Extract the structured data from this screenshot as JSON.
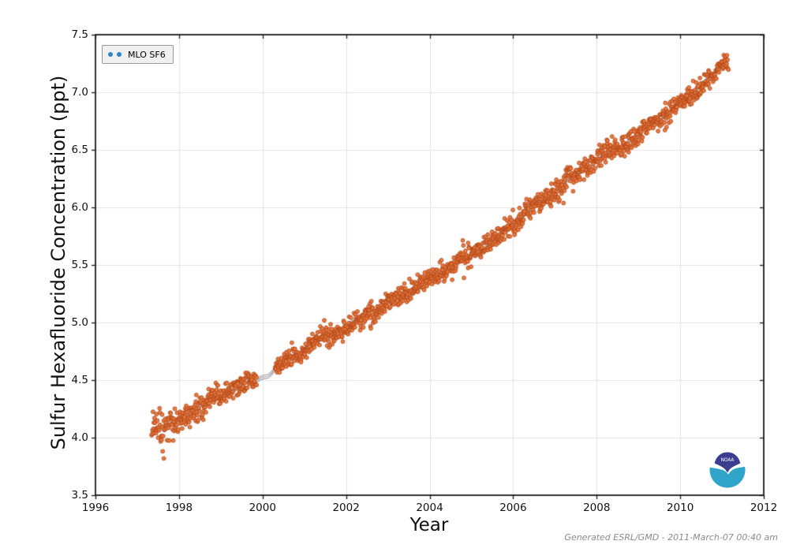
{
  "figure": {
    "footer_text": "Generated ESRL/GMD - 2011-March-07 00:40 am",
    "logo": {
      "text": "NOAA",
      "dark_color": "#3b3e8f",
      "light_color": "#2fa6c9"
    }
  },
  "chart_data": {
    "type": "scatter",
    "title": "",
    "xlabel": "Year",
    "ylabel": "Sulfur Hexafluoride Concentration (ppt)",
    "xlim": [
      1996,
      2012
    ],
    "ylim": [
      3.5,
      7.5
    ],
    "x_ticks": [
      1996,
      1998,
      2000,
      2002,
      2004,
      2006,
      2008,
      2010,
      2012
    ],
    "x_tick_labels": [
      "1996",
      "1998",
      "2000",
      "2002",
      "2004",
      "2006",
      "2008",
      "2010",
      "2012"
    ],
    "y_ticks": [
      3.5,
      4.0,
      4.5,
      5.0,
      5.5,
      6.0,
      6.5,
      7.0,
      7.5
    ],
    "y_tick_labels": [
      "3.5",
      "4.0",
      "4.5",
      "5.0",
      "5.5",
      "6.0",
      "6.5",
      "7.0",
      "7.5"
    ],
    "grid": true,
    "grid_color": "#e3e3e3",
    "frame_color": "#1a1a1a",
    "legend_position": "upper-left",
    "legend_marker_color": "#2e86c8",
    "trend_line_color": "#8c8c8c",
    "series": [
      {
        "name": "MLO SF6",
        "marker_fill": "#e6773c",
        "marker_stroke": "#b04314",
        "marker_radius": 2.45,
        "x_start": 1997.35,
        "x_end": 2011.15,
        "points_per_year": 110,
        "noise_sd": 0.045,
        "seed": 1234,
        "data_gaps": [
          [
            1999.87,
            2000.3
          ]
        ],
        "trend_anchors": [
          [
            1997.35,
            4.07
          ],
          [
            1998.0,
            4.16
          ],
          [
            1998.5,
            4.28
          ],
          [
            1999.0,
            4.36
          ],
          [
            1999.5,
            4.46
          ],
          [
            1999.87,
            4.5
          ],
          [
            2000.3,
            4.59
          ],
          [
            2001.0,
            4.77
          ],
          [
            2001.5,
            4.87
          ],
          [
            2002.0,
            4.96
          ],
          [
            2002.5,
            5.06
          ],
          [
            2003.0,
            5.17
          ],
          [
            2003.5,
            5.28
          ],
          [
            2004.0,
            5.39
          ],
          [
            2004.5,
            5.49
          ],
          [
            2005.0,
            5.59
          ],
          [
            2005.5,
            5.71
          ],
          [
            2006.0,
            5.86
          ],
          [
            2006.5,
            6.0
          ],
          [
            2007.0,
            6.13
          ],
          [
            2007.5,
            6.28
          ],
          [
            2008.0,
            6.41
          ],
          [
            2008.5,
            6.52
          ],
          [
            2009.0,
            6.63
          ],
          [
            2009.5,
            6.77
          ],
          [
            2010.0,
            6.9
          ],
          [
            2010.5,
            7.06
          ],
          [
            2011.0,
            7.22
          ],
          [
            2011.15,
            7.28
          ]
        ]
      }
    ]
  }
}
